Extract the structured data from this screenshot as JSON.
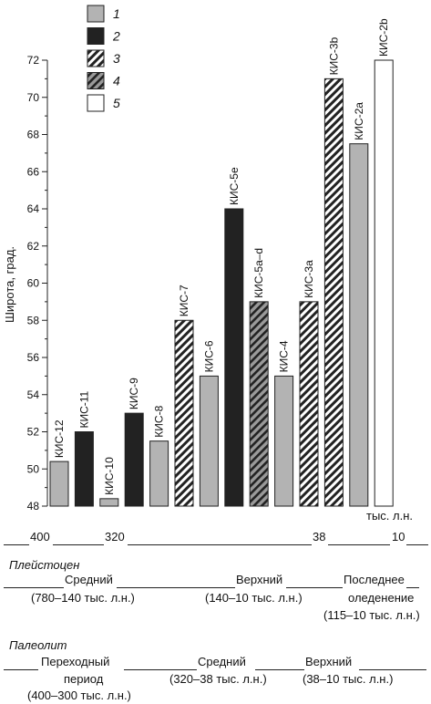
{
  "colors": {
    "gray": "#b3b3b3",
    "black": "#222222",
    "hatch_light_bg": "#ffffff",
    "hatch_dark_bg": "#9a9a9a",
    "white": "#ffffff"
  },
  "legend": [
    {
      "label": "1",
      "fill": "gray"
    },
    {
      "label": "2",
      "fill": "black"
    },
    {
      "label": "3",
      "fill": "hatch-light"
    },
    {
      "label": "4",
      "fill": "hatch-dark"
    },
    {
      "label": "5",
      "fill": "white"
    }
  ],
  "chart_data": {
    "type": "bar",
    "ylabel": "Широта, град.",
    "ylim": [
      48,
      72
    ],
    "yticks": [
      48,
      50,
      52,
      54,
      56,
      58,
      60,
      62,
      64,
      66,
      68,
      70,
      72
    ],
    "grid": false,
    "legend_position": "top-left",
    "categories": [
      "КИС-12",
      "КИС-11",
      "КИС-10",
      "КИС-9",
      "КИС-8",
      "КИС-7",
      "КИС-6",
      "КИС-5e",
      "КИС-5a–d",
      "КИС-4",
      "КИС-3a",
      "КИС-3b",
      "КИС-2a",
      "КИС-2b"
    ],
    "values": [
      50.4,
      52.0,
      48.4,
      53.0,
      51.5,
      58.0,
      55.0,
      64.0,
      59.0,
      55.0,
      59.0,
      71.0,
      67.5,
      72.0
    ],
    "types": [
      "1",
      "2",
      "1",
      "2",
      "1",
      "3",
      "1",
      "2",
      "4",
      "1",
      "3",
      "3",
      "1",
      "5"
    ],
    "time_axis": {
      "unit": "тыс. л.н.",
      "ticks": [
        "400",
        "320",
        "38",
        "10"
      ]
    }
  },
  "periods": {
    "pleistocene": {
      "title": "Плейстоцен",
      "middle": "Средний",
      "middle_range": "(780–140 тыс. л.н.)",
      "upper": "Верхний",
      "upper_range": "(140–10 тыс. л.н.)",
      "last_line1": "Последнее",
      "last_line2": "оледенение",
      "last_range": "(115–10 тыс. л.н.)"
    },
    "paleolithic": {
      "title": "Палеолит",
      "transition_line1": "Переходный",
      "transition_line2": "период",
      "transition_range": "(400–300 тыс. л.н.)",
      "middle": "Средний",
      "middle_range": "(320–38 тыс. л.н.)",
      "upper": "Верхний",
      "upper_range": "(38–10 тыс. л.н.)"
    }
  }
}
